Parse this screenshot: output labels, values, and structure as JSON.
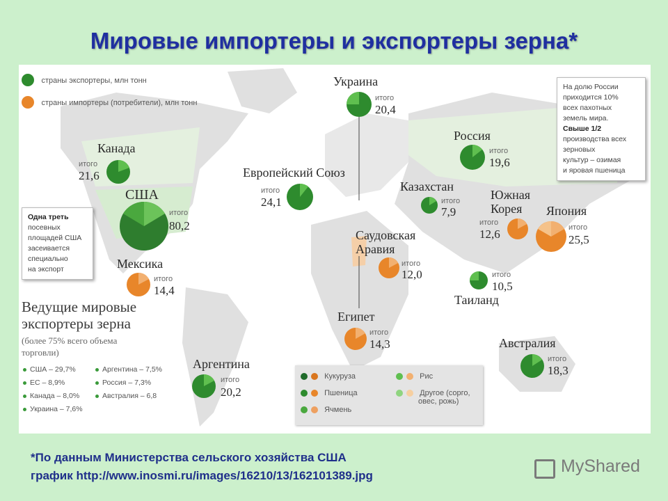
{
  "title": "Мировые импортеры и экспортеры зерна*",
  "legend_top": {
    "exporters": "страны экспортеры, млн тонн",
    "importers": "страны импортеры (потребители), млн тонн"
  },
  "colors": {
    "exporter": "#2e8b2e",
    "exporter_light": "#5fbf4f",
    "importer": "#e8862a",
    "importer_light": "#f2b070"
  },
  "itogo_label": "итого",
  "countries": [
    {
      "name": "Канада",
      "value": "21,6",
      "type": "exporter"
    },
    {
      "name": "США",
      "value": "80,2",
      "type": "exporter"
    },
    {
      "name": "Мексика",
      "value": "14,4",
      "type": "importer"
    },
    {
      "name": "Аргентина",
      "value": "20,2",
      "type": "exporter"
    },
    {
      "name": "Украина",
      "value": "20,4",
      "type": "exporter"
    },
    {
      "name": "Европейский Союз",
      "value": "24,1",
      "type": "exporter"
    },
    {
      "name": "Россия",
      "value": "19,6",
      "type": "exporter"
    },
    {
      "name": "Казахстан",
      "value": "7,9",
      "type": "exporter"
    },
    {
      "name": "Саудовская Аравия",
      "value": "12,0",
      "type": "importer"
    },
    {
      "name": "Египет",
      "value": "14,3",
      "type": "importer"
    },
    {
      "name": "Южная Корея",
      "value": "12,6",
      "type": "importer"
    },
    {
      "name": "Япония",
      "value": "25,5",
      "type": "importer"
    },
    {
      "name": "Таиланд",
      "value": "10,5",
      "type": "exporter"
    },
    {
      "name": "Австралия",
      "value": "18,3",
      "type": "exporter"
    }
  ],
  "note_usa": [
    "Одна треть",
    "посевных",
    "площадей США",
    "засеивается",
    "специально",
    "на экспорт"
  ],
  "note_russia": [
    "На долю России",
    "приходится 10%",
    "всех пахотных",
    "земель мира.",
    "Свыше 1/2",
    "производства всех",
    "зерновых",
    "культур – озимая",
    "и яровая пшеница"
  ],
  "leaders": {
    "title_line1": "Ведущие мировые",
    "title_line2": "экспортеры зерна",
    "sub_line1": "(более 75% всего объема",
    "sub_line2": "торговли)",
    "items": [
      "США – 29,7%",
      "Аргентина – 7,5%",
      "ЕС – 8,9%",
      "Россия – 7,3%",
      "Канада – 8,0%",
      "Австралия – 6,8",
      "Украина – 7,6%"
    ]
  },
  "crop_legend": {
    "corn": "Кукуруза",
    "rice": "Рис",
    "wheat": "Пшеница",
    "other": "Другое (сорго,",
    "other2": "овес, рожь)",
    "barley": "Ячмень"
  },
  "footer_line1": "*По данным Министерства сельского хозяйства США",
  "footer_line2": "график http://www.inosmi.ru/images/16210/13/162101389.jpg",
  "brand": "MyShared"
}
